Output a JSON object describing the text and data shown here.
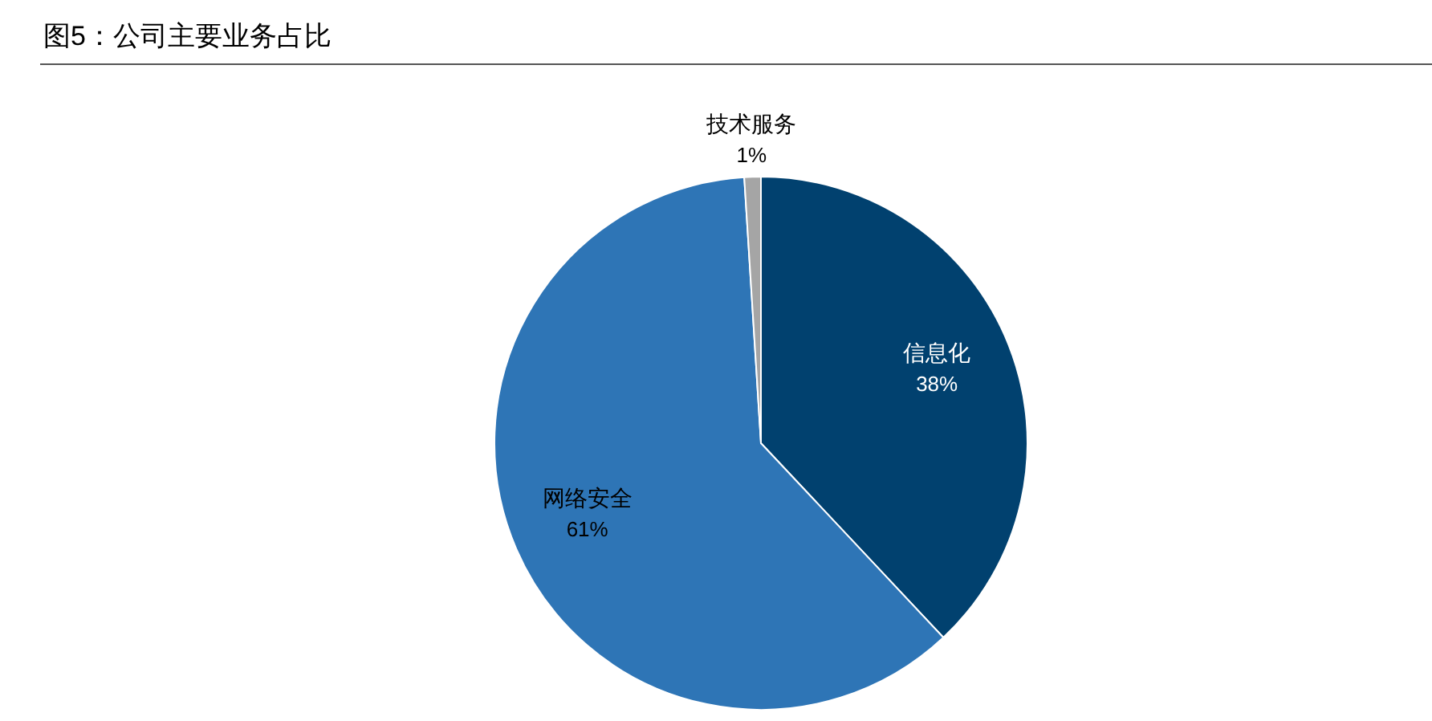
{
  "chart_data": {
    "type": "pie",
    "title": "图5：公司主要业务占比",
    "categories": [
      "信息化",
      "网络安全",
      "技术服务"
    ],
    "values": [
      38,
      61,
      1
    ],
    "value_labels": [
      "38%",
      "61%",
      "1%"
    ],
    "colors": [
      "#01416f",
      "#2e75b6",
      "#a5a5a5"
    ]
  }
}
